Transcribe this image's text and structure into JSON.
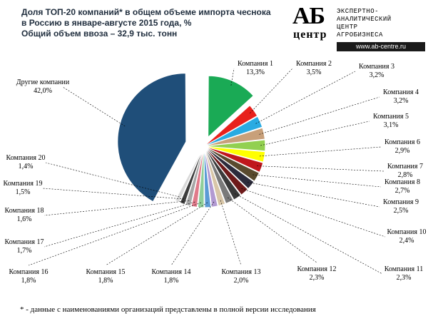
{
  "title": {
    "line1": "Доля ТОП-20 компаний* в общем объеме импорта чеснока",
    "line2": "в Россию в январе-августе 2015 года, %",
    "line3": "Общий объем ввоза – 32,9 тыс. тонн"
  },
  "logo": {
    "mark": "АБ",
    "mark_sub": "центр",
    "text_lines": [
      "ЭКСПЕРТНО-",
      "АНАЛИТИЧЕСКИЙ",
      "ЦЕНТР",
      "АГРОБИЗНЕСА"
    ],
    "url": "www.ab-centre.ru"
  },
  "footnote": "* - данные с наименованиями организаций представлены в полной версии исследования",
  "chart_data": {
    "type": "pie",
    "title": "Доля ТОП-20 компаний* в общем объеме импорта чеснока в Россию в январе-августе 2015 года, %",
    "slices": [
      {
        "label": "Компания 1",
        "value": 13.3,
        "value_text": "13,3%",
        "color": "#1aaa55"
      },
      {
        "label": "Компания 2",
        "value": 3.5,
        "value_text": "3,5%",
        "color": "#e8211c"
      },
      {
        "label": "Компания 3",
        "value": 3.2,
        "value_text": "3,2%",
        "color": "#29abe2"
      },
      {
        "label": "Компания 4",
        "value": 3.2,
        "value_text": "3,2%",
        "color": "#c8a07a"
      },
      {
        "label": "Компания 5",
        "value": 3.1,
        "value_text": "3,1%",
        "color": "#92d050"
      },
      {
        "label": "Компания 6",
        "value": 2.9,
        "value_text": "2,9%",
        "color": "#ffff00"
      },
      {
        "label": "Компания 7",
        "value": 2.8,
        "value_text": "2,8%",
        "color": "#c0161c"
      },
      {
        "label": "Компания 8",
        "value": 2.7,
        "value_text": "2,7%",
        "color": "#594a2e"
      },
      {
        "label": "Компания 9",
        "value": 2.5,
        "value_text": "2,5%",
        "color": "#2c2c3c"
      },
      {
        "label": "Компания 10",
        "value": 2.4,
        "value_text": "2,4%",
        "color": "#6e1a1a"
      },
      {
        "label": "Компания 11",
        "value": 2.3,
        "value_text": "2,3%",
        "color": "#3a3a3a"
      },
      {
        "label": "Компания 12",
        "value": 2.3,
        "value_text": "2,3%",
        "color": "#7a7a7a"
      },
      {
        "label": "Компания 13",
        "value": 2.0,
        "value_text": "2,0%",
        "color": "#d8c6a8"
      },
      {
        "label": "Компания 14",
        "value": 1.8,
        "value_text": "1,8%",
        "color": "#b29ad2"
      },
      {
        "label": "Компания 15",
        "value": 1.8,
        "value_text": "1,8%",
        "color": "#5b9bd5"
      },
      {
        "label": "Компания 16",
        "value": 1.8,
        "value_text": "1,8%",
        "color": "#8fcf9a"
      },
      {
        "label": "Компания 17",
        "value": 1.7,
        "value_text": "1,7%",
        "color": "#e07a8a"
      },
      {
        "label": "Компания 18",
        "value": 1.6,
        "value_text": "1,6%",
        "color": "#a6a6a6"
      },
      {
        "label": "Компания 19",
        "value": 1.5,
        "value_text": "1,5%",
        "color": "#3d3d3d"
      },
      {
        "label": "Компания 20",
        "value": 1.4,
        "value_text": "1,4%",
        "color": "#d9d9d9"
      },
      {
        "label": "Другие компании",
        "value": 42.0,
        "value_text": "42,0%",
        "color": "#1f4e79"
      }
    ]
  }
}
